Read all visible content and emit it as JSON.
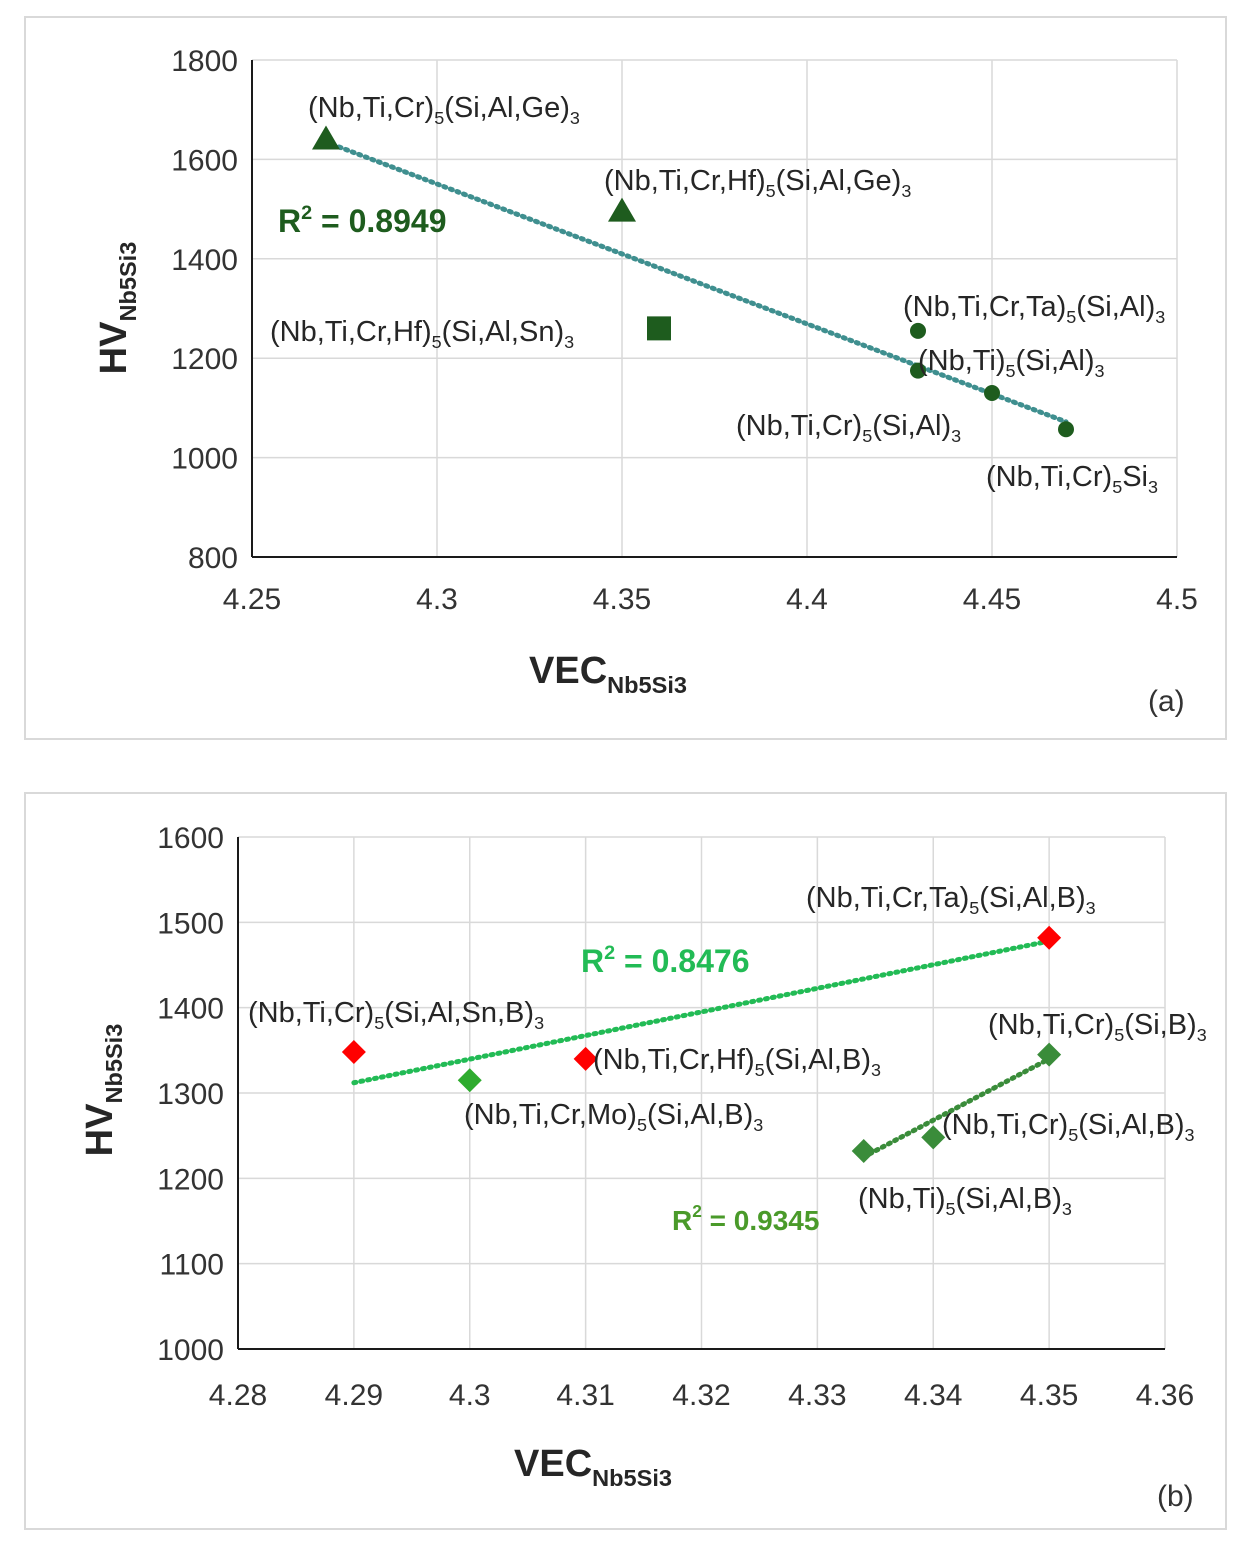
{
  "chart_data": [
    {
      "type": "scatter",
      "panel_label": "(a)",
      "xlabel": {
        "main": "VEC",
        "sub": "Nb5Si3"
      },
      "ylabel": {
        "main": "HV",
        "sub": "Nb5Si3"
      },
      "xlim": [
        4.25,
        4.5
      ],
      "ylim": [
        800,
        1800
      ],
      "xticks": [
        4.25,
        4.3,
        4.35,
        4.4,
        4.45,
        4.5
      ],
      "xtick_labels": [
        "4.25",
        "4.3",
        "4.35",
        "4.4",
        "4.45",
        "4.5"
      ],
      "yticks": [
        800,
        1000,
        1200,
        1400,
        1600,
        1800
      ],
      "ytick_labels": [
        "800",
        "1000",
        "1200",
        "1400",
        "1600",
        "1800"
      ],
      "points": [
        {
          "x": 4.27,
          "y": 1640,
          "marker": "triangle",
          "color": "#1e5c1e",
          "label": [
            [
              "(Nb,Ti,Cr)",
              "n"
            ],
            [
              "5",
              "sub"
            ],
            [
              "(Si,Al,Ge)",
              "n"
            ],
            [
              "3",
              "sub"
            ]
          ]
        },
        {
          "x": 4.35,
          "y": 1495,
          "marker": "triangle",
          "color": "#1e5c1e",
          "label": [
            [
              "(Nb,Ti,Cr,Hf)",
              "n"
            ],
            [
              "5",
              "sub"
            ],
            [
              "(Si,Al,Ge)",
              "n"
            ],
            [
              "3",
              "sub"
            ]
          ]
        },
        {
          "x": 4.36,
          "y": 1260,
          "marker": "square",
          "color": "#1e5c1e",
          "label": [
            [
              "(Nb,Ti,Cr,Hf)",
              "n"
            ],
            [
              "5",
              "sub"
            ],
            [
              "(Si,Al,Sn)",
              "n"
            ],
            [
              "3",
              "sub"
            ]
          ]
        },
        {
          "x": 4.43,
          "y": 1255,
          "marker": "circle",
          "color": "#1e5c1e",
          "label": [
            [
              "(Nb,Ti,Cr,Ta)",
              "n"
            ],
            [
              "5",
              "sub"
            ],
            [
              "(Si,Al)",
              "n"
            ],
            [
              "3",
              "sub"
            ]
          ]
        },
        {
          "x": 4.43,
          "y": 1175,
          "marker": "circle",
          "color": "#1e5c1e",
          "label": [
            [
              "(Nb,Ti)",
              "n"
            ],
            [
              "5",
              "sub"
            ],
            [
              "(Si,Al)",
              "n"
            ],
            [
              "3",
              "sub"
            ]
          ]
        },
        {
          "x": 4.45,
          "y": 1130,
          "marker": "circle",
          "color": "#1e5c1e",
          "label": [
            [
              "(Nb,Ti,Cr)",
              "n"
            ],
            [
              "5",
              "sub"
            ],
            [
              "(Si,Al)",
              "n"
            ],
            [
              "3",
              "sub"
            ]
          ]
        },
        {
          "x": 4.47,
          "y": 1057,
          "marker": "circle",
          "color": "#1e5c1e",
          "label": [
            [
              "(Nb,Ti,Cr)",
              "n"
            ],
            [
              "5",
              "sub"
            ],
            [
              "Si",
              "n"
            ],
            [
              "3",
              "sub"
            ]
          ]
        }
      ],
      "trendlines": [
        {
          "x1": 4.27,
          "y1": 1635,
          "x2": 4.47,
          "y2": 1072,
          "color": "#3f8f8f",
          "label": [
            [
              "R",
              "n"
            ],
            [
              "2",
              "sup"
            ],
            [
              " = 0.8949",
              "n"
            ]
          ],
          "label_color": "#1e5c1e"
        }
      ]
    },
    {
      "type": "scatter",
      "panel_label": "(b)",
      "xlabel": {
        "main": "VEC",
        "sub": "Nb5Si3"
      },
      "ylabel": {
        "main": "HV",
        "sub": "Nb5Si3"
      },
      "xlim": [
        4.28,
        4.36
      ],
      "ylim": [
        1000,
        1600
      ],
      "xticks": [
        4.28,
        4.29,
        4.3,
        4.31,
        4.32,
        4.33,
        4.34,
        4.35,
        4.36
      ],
      "xtick_labels": [
        "4.28",
        "4.29",
        "4.3",
        "4.31",
        "4.32",
        "4.33",
        "4.34",
        "4.35",
        "4.36"
      ],
      "yticks": [
        1000,
        1100,
        1200,
        1300,
        1400,
        1500,
        1600
      ],
      "ytick_labels": [
        "1000",
        "1100",
        "1200",
        "1300",
        "1400",
        "1500",
        "1600"
      ],
      "points": [
        {
          "x": 4.29,
          "y": 1348,
          "marker": "diamond",
          "color": "#ff0000",
          "label": [
            [
              "(Nb,Ti,Cr)",
              "n"
            ],
            [
              "5",
              "sub"
            ],
            [
              "(Si,Al,Sn,B)",
              "n"
            ],
            [
              "3",
              "sub"
            ]
          ]
        },
        {
          "x": 4.3,
          "y": 1315,
          "marker": "diamond",
          "color": "#2eab2e",
          "label": [
            [
              "(Nb,Ti,Cr,Mo)",
              "n"
            ],
            [
              "5",
              "sub"
            ],
            [
              "(Si,Al,B)",
              "n"
            ],
            [
              "3",
              "sub"
            ]
          ]
        },
        {
          "x": 4.31,
          "y": 1340,
          "marker": "diamond",
          "color": "#ff0000",
          "label": [
            [
              "(Nb,Ti,Cr,Hf)",
              "n"
            ],
            [
              "5",
              "sub"
            ],
            [
              "(Si,Al,B)",
              "n"
            ],
            [
              "3",
              "sub"
            ]
          ]
        },
        {
          "x": 4.35,
          "y": 1482,
          "marker": "diamond",
          "color": "#ff0000",
          "label": [
            [
              "(Nb,Ti,Cr,Ta)",
              "n"
            ],
            [
              "5",
              "sub"
            ],
            [
              "(Si,Al,B)",
              "n"
            ],
            [
              "3",
              "sub"
            ]
          ]
        },
        {
          "x": 4.35,
          "y": 1345,
          "marker": "diamond",
          "color": "#3a8c3a",
          "label": [
            [
              "(Nb,Ti,Cr)",
              "n"
            ],
            [
              "5",
              "sub"
            ],
            [
              "(Si,B)",
              "n"
            ],
            [
              "3",
              "sub"
            ]
          ]
        },
        {
          "x": 4.34,
          "y": 1248,
          "marker": "diamond",
          "color": "#3a8c3a",
          "label": [
            [
              "(Nb,Ti,Cr)",
              "n"
            ],
            [
              "5",
              "sub"
            ],
            [
              "(Si,Al,B)",
              "n"
            ],
            [
              "3",
              "sub"
            ]
          ]
        },
        {
          "x": 4.334,
          "y": 1232,
          "marker": "diamond",
          "color": "#3a8c3a",
          "label": [
            [
              "(Nb,Ti)",
              "n"
            ],
            [
              "5",
              "sub"
            ],
            [
              "(Si,Al,B)",
              "n"
            ],
            [
              "3",
              "sub"
            ]
          ]
        }
      ],
      "trendlines": [
        {
          "x1": 4.29,
          "y1": 1312,
          "x2": 4.35,
          "y2": 1478,
          "color": "#22bb55",
          "label": [
            [
              "R",
              "n"
            ],
            [
              "2",
              "sup"
            ],
            [
              " = 0.8476",
              "n"
            ]
          ],
          "label_color": "#22bb55"
        },
        {
          "x1": 4.334,
          "y1": 1225,
          "x2": 4.35,
          "y2": 1340,
          "color": "#3a8c3a",
          "label": [
            [
              "R",
              "n"
            ],
            [
              "2",
              "sup"
            ],
            [
              " = 0.9345",
              "n"
            ]
          ],
          "label_color": "#4a9a2a"
        }
      ]
    }
  ]
}
